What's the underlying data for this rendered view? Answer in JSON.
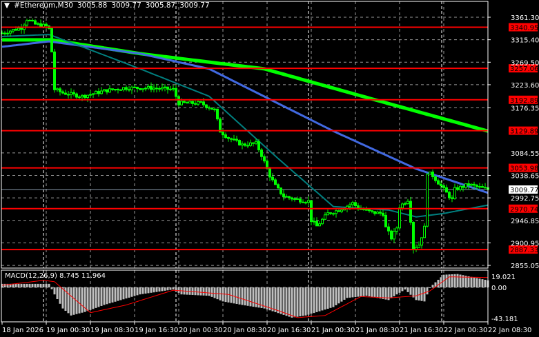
{
  "header": {
    "menu_icon": "triangle-down-icon",
    "symbol": "#Ethereum,M30",
    "open": "3005.88",
    "high": "3009.77",
    "low": "3005.87",
    "close": "3009.77"
  },
  "macd_header": {
    "label": "MACD(12,26,9)",
    "main": "8.745",
    "signal": "11.964"
  },
  "colors": {
    "background": "#000000",
    "candle": "#00ff00",
    "level_line": "#ff0000",
    "ma_slow": "#00ff00",
    "ma_mid": "#4169e1",
    "ma_fast": "#008080",
    "macd_hist": "#c0c0c0",
    "macd_signal": "#ff0000",
    "grid": "#808080"
  },
  "chart_data": [
    {
      "type": "candlestick",
      "timeframe": "M30",
      "price_ticks": [
        "3361.30",
        "3315.40",
        "3269.50",
        "3223.60",
        "3176.35",
        "3084.55",
        "3038.65",
        "2992.75",
        "2946.85",
        "2900.95",
        "2855.05"
      ],
      "ylim": [
        2849,
        3380
      ],
      "time_ticks": [
        "18 Jan 2026",
        "19 Jan 00:30",
        "19 Jan 08:30",
        "19 Jan 16:30",
        "20 Jan 00:30",
        "20 Jan 08:30",
        "20 Jan 16:30",
        "21 Jan 00:30",
        "21 Jan 08:30",
        "21 Jan 16:30",
        "22 Jan 00:30",
        "22 Jan 08:30"
      ],
      "current_price": "3009.77",
      "levels": [
        "3340.95",
        "3257.06",
        "3192.89",
        "3129.89",
        "3053.98",
        "2970.74",
        "2887.33"
      ],
      "close_path": [
        [
          0,
          3329
        ],
        [
          7,
          3340
        ],
        [
          9,
          3357
        ],
        [
          12,
          3347
        ],
        [
          16,
          3343
        ],
        [
          17,
          3337
        ],
        [
          18,
          3291
        ],
        [
          19,
          3214
        ],
        [
          22,
          3207
        ],
        [
          29,
          3200
        ],
        [
          37,
          3211
        ],
        [
          44,
          3217
        ],
        [
          54,
          3217
        ],
        [
          62,
          3214
        ],
        [
          64,
          3186
        ],
        [
          72,
          3186
        ],
        [
          77,
          3172
        ],
        [
          79,
          3129
        ],
        [
          82,
          3115
        ],
        [
          87,
          3101
        ],
        [
          92,
          3104
        ],
        [
          94,
          3080
        ],
        [
          97,
          3038
        ],
        [
          99,
          3017
        ],
        [
          102,
          2996
        ],
        [
          107,
          2989
        ],
        [
          111,
          2986
        ],
        [
          112,
          2947
        ],
        [
          114,
          2935
        ],
        [
          118,
          2961
        ],
        [
          122,
          2968
        ],
        [
          127,
          2982
        ],
        [
          129,
          2972
        ],
        [
          134,
          2963
        ],
        [
          138,
          2961
        ],
        [
          139,
          2932
        ],
        [
          141,
          2911
        ],
        [
          143,
          2932
        ],
        [
          144,
          2975
        ],
        [
          147,
          2989
        ],
        [
          148,
          2947
        ],
        [
          149,
          2890
        ],
        [
          151,
          2897
        ],
        [
          153,
          2932
        ],
        [
          154,
          3045
        ],
        [
          156,
          3038
        ],
        [
          159,
          3017
        ],
        [
          163,
          2989
        ],
        [
          164,
          3010
        ],
        [
          169,
          3020
        ],
        [
          173,
          3014
        ],
        [
          176,
          3009.77
        ]
      ],
      "moving_averages": [
        {
          "color": "#00ff00",
          "points": [
            [
              0,
              3315
            ],
            [
              18,
              3315
            ],
            [
              50,
              3287
            ],
            [
              95,
              3256
            ],
            [
              135,
              3193
            ],
            [
              176,
              3129
            ]
          ]
        },
        {
          "color": "#4169e1",
          "points": [
            [
              0,
              3301
            ],
            [
              17,
              3312
            ],
            [
              50,
              3287
            ],
            [
              75,
              3256
            ],
            [
              120,
              3129
            ],
            [
              150,
              3052
            ],
            [
              176,
              3003
            ]
          ]
        },
        {
          "color": "#008080",
          "points": [
            [
              0,
              3322
            ],
            [
              17,
              3326
            ],
            [
              30,
              3299
            ],
            [
              50,
              3256
            ],
            [
              75,
              3200
            ],
            [
              100,
              3073
            ],
            [
              120,
              2975
            ],
            [
              140,
              2968
            ],
            [
              150,
              2954
            ],
            [
              160,
              2961
            ],
            [
              176,
              2978
            ]
          ]
        }
      ]
    },
    {
      "type": "macd",
      "params": "12,26,9",
      "ylim": [
        -43.181,
        19.021
      ],
      "ticks": [
        "19.021",
        "0.00",
        "-43.181"
      ],
      "histogram": [
        [
          0,
          5
        ],
        [
          17,
          5
        ],
        [
          19,
          -10
        ],
        [
          22,
          -30
        ],
        [
          25,
          -40
        ],
        [
          30,
          -35
        ],
        [
          37,
          -25
        ],
        [
          50,
          -10
        ],
        [
          62,
          -3
        ],
        [
          65,
          -10
        ],
        [
          75,
          -12
        ],
        [
          80,
          -20
        ],
        [
          87,
          -25
        ],
        [
          95,
          -30
        ],
        [
          105,
          -43
        ],
        [
          110,
          -40
        ],
        [
          120,
          -28
        ],
        [
          125,
          -15
        ],
        [
          132,
          -12
        ],
        [
          140,
          -18
        ],
        [
          143,
          -10
        ],
        [
          146,
          -3
        ],
        [
          150,
          -18
        ],
        [
          153,
          -20
        ],
        [
          155,
          0
        ],
        [
          160,
          18
        ],
        [
          165,
          19
        ],
        [
          176,
          10
        ]
      ],
      "signal": [
        [
          0,
          3
        ],
        [
          15,
          10
        ],
        [
          19,
          8
        ],
        [
          32,
          -36
        ],
        [
          45,
          -25
        ],
        [
          62,
          -4
        ],
        [
          82,
          -10
        ],
        [
          100,
          -33
        ],
        [
          107,
          -43
        ],
        [
          117,
          -40
        ],
        [
          130,
          -13
        ],
        [
          140,
          -15
        ],
        [
          150,
          -12
        ],
        [
          155,
          -5
        ],
        [
          162,
          15
        ],
        [
          176,
          14
        ]
      ]
    }
  ]
}
